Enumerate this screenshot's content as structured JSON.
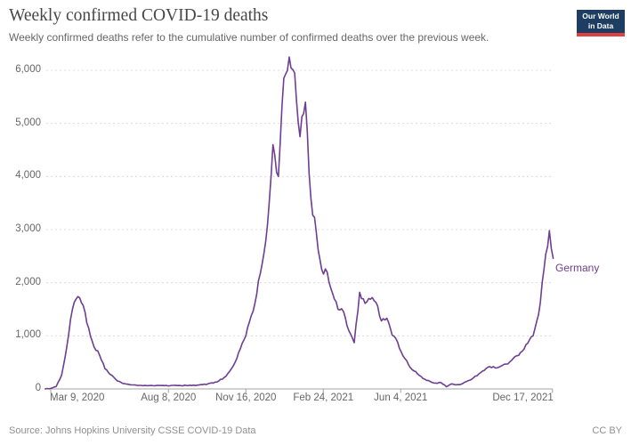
{
  "header": {
    "title": "Weekly confirmed COVID-19 deaths",
    "subtitle": "Weekly confirmed deaths refer to the cumulative number of confirmed deaths over the previous week.",
    "logo": {
      "line1": "Our World",
      "line2": "in Data"
    }
  },
  "footer": {
    "source": "Source: Johns Hopkins University CSSE COVID-19 Data",
    "license": "CC BY"
  },
  "colors": {
    "line": "#6d3e91",
    "grid": "#dcdcdc",
    "axis": "#a3a3a3",
    "logo_bg": "#1d3d63",
    "logo_bar": "#e0403f"
  },
  "chart_data": {
    "type": "line",
    "title": "Weekly confirmed COVID-19 deaths",
    "xlabel": "",
    "ylabel": "",
    "ylim": [
      0,
      6500
    ],
    "grid": "horizontal-dashed",
    "legend": "end-of-line-label",
    "yticks": [
      {
        "v": 0,
        "label": "0"
      },
      {
        "v": 1000,
        "label": "1,000"
      },
      {
        "v": 2000,
        "label": "2,000"
      },
      {
        "v": 3000,
        "label": "3,000"
      },
      {
        "v": 4000,
        "label": "4,000"
      },
      {
        "v": 5000,
        "label": "5,000"
      },
      {
        "v": 6000,
        "label": "6,000"
      }
    ],
    "xticks": [
      {
        "date": "2020-03-09",
        "label": "Mar 9, 2020"
      },
      {
        "date": "2020-08-08",
        "label": "Aug 8, 2020"
      },
      {
        "date": "2020-11-16",
        "label": "Nov 16, 2020"
      },
      {
        "date": "2021-02-24",
        "label": "Feb 24, 2021"
      },
      {
        "date": "2021-06-04",
        "label": "Jun 4, 2021"
      },
      {
        "date": "2021-12-17",
        "label": "Dec 17, 2021"
      }
    ],
    "series": [
      {
        "name": "Germany",
        "points": [
          [
            "2020-03-02",
            0
          ],
          [
            "2020-03-09",
            10
          ],
          [
            "2020-03-16",
            45
          ],
          [
            "2020-03-23",
            260
          ],
          [
            "2020-03-30",
            820
          ],
          [
            "2020-04-06",
            1500
          ],
          [
            "2020-04-13",
            1740
          ],
          [
            "2020-04-20",
            1570
          ],
          [
            "2020-04-27",
            1150
          ],
          [
            "2020-05-04",
            790
          ],
          [
            "2020-05-11",
            640
          ],
          [
            "2020-05-18",
            380
          ],
          [
            "2020-05-25",
            270
          ],
          [
            "2020-06-01",
            180
          ],
          [
            "2020-06-08",
            120
          ],
          [
            "2020-06-15",
            90
          ],
          [
            "2020-06-22",
            75
          ],
          [
            "2020-06-29",
            65
          ],
          [
            "2020-07-06",
            60
          ],
          [
            "2020-07-13",
            62
          ],
          [
            "2020-07-20",
            58
          ],
          [
            "2020-07-27",
            65
          ],
          [
            "2020-08-03",
            62
          ],
          [
            "2020-08-10",
            60
          ],
          [
            "2020-08-17",
            68
          ],
          [
            "2020-08-24",
            62
          ],
          [
            "2020-08-31",
            66
          ],
          [
            "2020-09-07",
            64
          ],
          [
            "2020-09-14",
            70
          ],
          [
            "2020-09-21",
            80
          ],
          [
            "2020-09-28",
            95
          ],
          [
            "2020-10-05",
            110
          ],
          [
            "2020-10-12",
            150
          ],
          [
            "2020-10-19",
            215
          ],
          [
            "2020-10-26",
            330
          ],
          [
            "2020-11-02",
            500
          ],
          [
            "2020-11-09",
            760
          ],
          [
            "2020-11-16",
            1000
          ],
          [
            "2020-11-23",
            1380
          ],
          [
            "2020-11-30",
            1780
          ],
          [
            "2020-12-07",
            2350
          ],
          [
            "2020-12-14",
            3100
          ],
          [
            "2020-12-21",
            4600
          ],
          [
            "2020-12-28",
            4000
          ],
          [
            "2021-01-04",
            5850
          ],
          [
            "2021-01-11",
            6250
          ],
          [
            "2021-01-18",
            5950
          ],
          [
            "2021-01-25",
            4750
          ],
          [
            "2021-02-01",
            5400
          ],
          [
            "2021-02-08",
            3600
          ],
          [
            "2021-02-15",
            2950
          ],
          [
            "2021-02-22",
            2250
          ],
          [
            "2021-03-01",
            2200
          ],
          [
            "2021-03-08",
            1800
          ],
          [
            "2021-03-15",
            1500
          ],
          [
            "2021-03-22",
            1460
          ],
          [
            "2021-03-29",
            1100
          ],
          [
            "2021-04-05",
            870
          ],
          [
            "2021-04-12",
            1820
          ],
          [
            "2021-04-19",
            1610
          ],
          [
            "2021-04-26",
            1690
          ],
          [
            "2021-05-03",
            1630
          ],
          [
            "2021-05-10",
            1280
          ],
          [
            "2021-05-17",
            1330
          ],
          [
            "2021-05-24",
            1010
          ],
          [
            "2021-05-31",
            880
          ],
          [
            "2021-06-07",
            620
          ],
          [
            "2021-06-14",
            460
          ],
          [
            "2021-06-21",
            340
          ],
          [
            "2021-06-28",
            255
          ],
          [
            "2021-07-05",
            185
          ],
          [
            "2021-07-12",
            140
          ],
          [
            "2021-07-19",
            110
          ],
          [
            "2021-07-26",
            120
          ],
          [
            "2021-08-02",
            40
          ],
          [
            "2021-08-09",
            95
          ],
          [
            "2021-08-16",
            80
          ],
          [
            "2021-08-23",
            100
          ],
          [
            "2021-08-30",
            155
          ],
          [
            "2021-09-06",
            210
          ],
          [
            "2021-09-13",
            285
          ],
          [
            "2021-09-20",
            350
          ],
          [
            "2021-09-27",
            420
          ],
          [
            "2021-10-04",
            395
          ],
          [
            "2021-10-11",
            425
          ],
          [
            "2021-10-18",
            470
          ],
          [
            "2021-10-25",
            535
          ],
          [
            "2021-11-01",
            625
          ],
          [
            "2021-11-08",
            710
          ],
          [
            "2021-11-15",
            860
          ],
          [
            "2021-11-22",
            1000
          ],
          [
            "2021-11-29",
            1400
          ],
          [
            "2021-12-06",
            2250
          ],
          [
            "2021-12-13",
            2980
          ],
          [
            "2021-12-18",
            2460
          ]
        ]
      }
    ]
  }
}
